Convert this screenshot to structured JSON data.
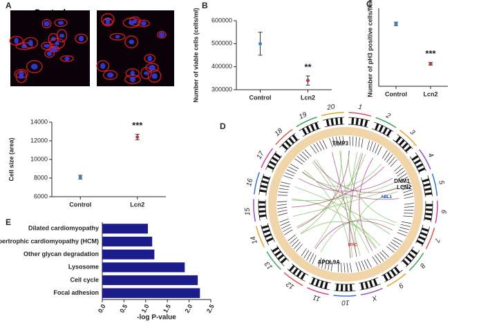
{
  "panel_labels": [
    "A",
    "B",
    "C",
    "D",
    "E"
  ],
  "image_label": "Control",
  "chart_data": [
    {
      "type": "dot",
      "ylabel": "Cell size (area)",
      "categories": [
        "Control",
        "Lcn2"
      ],
      "values": [
        8100,
        12400
      ],
      "errors": [
        200,
        300
      ],
      "colors": [
        "#3a7dc9",
        "#c0392b"
      ],
      "annotation": "***",
      "ylim": [
        6000,
        14000
      ],
      "yticks": [
        6000,
        8000,
        10000,
        12000,
        14000
      ]
    },
    {
      "type": "dot",
      "ylabel": "Number of viable cells (cells/ml)",
      "categories": [
        "Control",
        "Lcn2"
      ],
      "values": [
        500000,
        340000
      ],
      "errors": [
        50000,
        20000
      ],
      "colors": [
        "#3a7dc9",
        "#c0392b"
      ],
      "annotation": "**",
      "ylim": [
        300000,
        600000
      ],
      "yticks": [
        300000,
        400000,
        500000,
        600000
      ]
    },
    {
      "type": "dot",
      "ylabel": "Number of pH3 positive cells/field",
      "categories": [
        "Control",
        "Lcn2"
      ],
      "values": [
        5.6,
        3.3
      ],
      "errors": [
        0.1,
        0.08
      ],
      "colors": [
        "#3a7dc9",
        "#c0392b"
      ],
      "annotation": "***",
      "ylim": [
        2,
        6.5
      ]
    },
    {
      "type": "hbar",
      "xlabel": "-log P-value",
      "categories": [
        "Dilated cardiomyopathy",
        "Hypertrophic cardiomyopathy (HCM)",
        "Other glycan degradation",
        "Lysosome",
        "Cell cycle",
        "Focal adhesion"
      ],
      "values": [
        1.05,
        1.15,
        1.2,
        1.9,
        2.2,
        2.25
      ],
      "color": "#1c1c8a",
      "xlim": [
        0,
        2.5
      ],
      "xticks": [
        {
          "value": 0,
          "label": "0.0"
        },
        0.5,
        {
          "value": 1,
          "label": "1.0"
        },
        1.5,
        {
          "value": 2,
          "label": "2.0"
        },
        2.5
      ]
    }
  ],
  "circos": {
    "chromosomes": [
      "1",
      "2",
      "3",
      "4",
      "5",
      "6",
      "7",
      "8",
      "9",
      "X",
      "10",
      "11",
      "12",
      "13",
      "14",
      "15",
      "16",
      "17",
      "18",
      "19",
      "20"
    ],
    "genes": [
      "TIMP3",
      "DNM1",
      "LCN2",
      "APOL9A",
      "ABL1",
      "MYC"
    ]
  }
}
